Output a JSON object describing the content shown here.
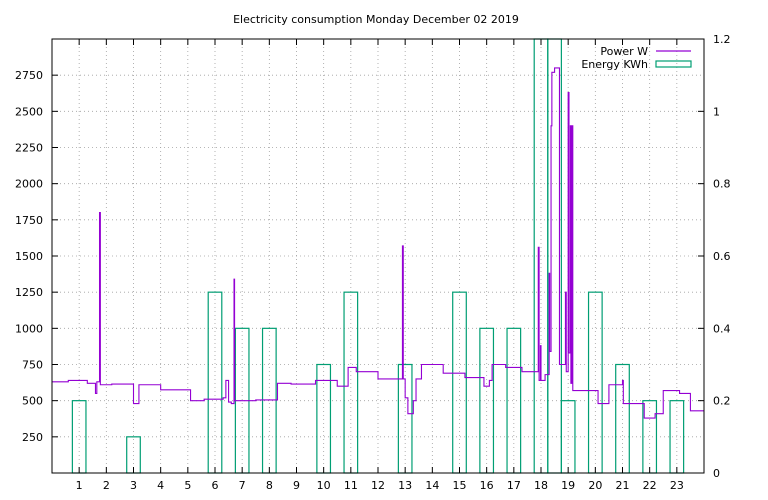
{
  "chart_data": {
    "type": "line",
    "title": "Electricity consumption Monday December 02 2019",
    "xlabel": "",
    "ylabel": "",
    "y2label": "",
    "xlim": [
      0,
      24
    ],
    "ylim": [
      0,
      3000
    ],
    "y2lim": [
      0,
      1.2
    ],
    "x_ticks": [
      1,
      2,
      3,
      4,
      5,
      6,
      7,
      8,
      9,
      10,
      11,
      12,
      13,
      14,
      15,
      16,
      17,
      18,
      19,
      20,
      21,
      22,
      23
    ],
    "y_ticks": [
      250,
      500,
      750,
      1000,
      1250,
      1500,
      1750,
      2000,
      2250,
      2500,
      2750
    ],
    "y2_ticks": [
      0,
      0.2,
      0.4,
      0.6,
      0.8,
      1,
      1.2
    ],
    "grid": true,
    "legend_position": "top-right",
    "colors": {
      "power": "#9400d3",
      "energy": "#009e73"
    },
    "series": [
      {
        "name": "Power W",
        "axis": "left",
        "style": "steps",
        "points": [
          [
            0,
            630
          ],
          [
            0.6,
            630
          ],
          [
            0.6,
            640
          ],
          [
            1.3,
            640
          ],
          [
            1.3,
            620
          ],
          [
            1.6,
            620
          ],
          [
            1.6,
            550
          ],
          [
            1.65,
            550
          ],
          [
            1.65,
            630
          ],
          [
            1.75,
            630
          ],
          [
            1.75,
            1800
          ],
          [
            1.78,
            1800
          ],
          [
            1.78,
            610
          ],
          [
            2.2,
            610
          ],
          [
            2.2,
            615
          ],
          [
            3,
            615
          ],
          [
            3,
            480
          ],
          [
            3.2,
            480
          ],
          [
            3.2,
            610
          ],
          [
            4,
            610
          ],
          [
            4,
            575
          ],
          [
            5.1,
            575
          ],
          [
            5.1,
            500
          ],
          [
            5.6,
            500
          ],
          [
            5.6,
            510
          ],
          [
            6.3,
            510
          ],
          [
            6.3,
            520
          ],
          [
            6.4,
            520
          ],
          [
            6.4,
            640
          ],
          [
            6.5,
            640
          ],
          [
            6.5,
            490
          ],
          [
            6.6,
            490
          ],
          [
            6.6,
            480
          ],
          [
            6.7,
            480
          ],
          [
            6.7,
            1340
          ],
          [
            6.72,
            1340
          ],
          [
            6.72,
            500
          ],
          [
            7.5,
            500
          ],
          [
            7.5,
            505
          ],
          [
            8.3,
            505
          ],
          [
            8.3,
            620
          ],
          [
            8.8,
            620
          ],
          [
            8.8,
            615
          ],
          [
            9.7,
            615
          ],
          [
            9.7,
            640
          ],
          [
            10.5,
            640
          ],
          [
            10.5,
            600
          ],
          [
            10.9,
            600
          ],
          [
            10.9,
            730
          ],
          [
            11.2,
            730
          ],
          [
            11.2,
            700
          ],
          [
            12,
            700
          ],
          [
            12,
            650
          ],
          [
            12.9,
            650
          ],
          [
            12.9,
            1570
          ],
          [
            12.93,
            1570
          ],
          [
            12.93,
            650
          ],
          [
            13,
            650
          ],
          [
            13,
            520
          ],
          [
            13.1,
            520
          ],
          [
            13.1,
            410
          ],
          [
            13.3,
            410
          ],
          [
            13.3,
            500
          ],
          [
            13.4,
            500
          ],
          [
            13.4,
            650
          ],
          [
            13.6,
            650
          ],
          [
            13.6,
            750
          ],
          [
            14.4,
            750
          ],
          [
            14.4,
            690
          ],
          [
            15.2,
            690
          ],
          [
            15.2,
            660
          ],
          [
            15.9,
            660
          ],
          [
            15.9,
            600
          ],
          [
            16.1,
            600
          ],
          [
            16.1,
            640
          ],
          [
            16.2,
            640
          ],
          [
            16.2,
            750
          ],
          [
            16.7,
            750
          ],
          [
            16.7,
            730
          ],
          [
            17.3,
            730
          ],
          [
            17.3,
            700
          ],
          [
            17.9,
            700
          ],
          [
            17.9,
            1560
          ],
          [
            17.93,
            1560
          ],
          [
            17.93,
            640
          ],
          [
            17.98,
            640
          ],
          [
            17.98,
            880
          ],
          [
            18.0,
            880
          ],
          [
            18.0,
            640
          ],
          [
            18.15,
            640
          ],
          [
            18.15,
            680
          ],
          [
            18.3,
            680
          ],
          [
            18.3,
            1380
          ],
          [
            18.32,
            1380
          ],
          [
            18.32,
            840
          ],
          [
            18.37,
            840
          ],
          [
            18.37,
            2400
          ],
          [
            18.4,
            2400
          ],
          [
            18.4,
            2770
          ],
          [
            18.5,
            2770
          ],
          [
            18.5,
            2800
          ],
          [
            18.68,
            2800
          ],
          [
            18.68,
            750
          ],
          [
            18.9,
            750
          ],
          [
            18.9,
            1250
          ],
          [
            18.93,
            1250
          ],
          [
            18.93,
            700
          ],
          [
            19,
            700
          ],
          [
            19,
            2630
          ],
          [
            19.03,
            2630
          ],
          [
            19.03,
            830
          ],
          [
            19.08,
            830
          ],
          [
            19.08,
            2400
          ],
          [
            19.1,
            2400
          ],
          [
            19.1,
            620
          ],
          [
            19.14,
            620
          ],
          [
            19.14,
            2400
          ],
          [
            19.17,
            2400
          ],
          [
            19.17,
            570
          ],
          [
            20.1,
            570
          ],
          [
            20.1,
            480
          ],
          [
            20.5,
            480
          ],
          [
            20.5,
            610
          ],
          [
            21,
            610
          ],
          [
            21,
            640
          ],
          [
            21.03,
            640
          ],
          [
            21.03,
            480
          ],
          [
            21.8,
            480
          ],
          [
            21.8,
            380
          ],
          [
            22.2,
            380
          ],
          [
            22.2,
            410
          ],
          [
            22.5,
            410
          ],
          [
            22.5,
            570
          ],
          [
            23.1,
            570
          ],
          [
            23.1,
            550
          ],
          [
            23.5,
            550
          ],
          [
            23.5,
            430
          ],
          [
            24,
            430
          ]
        ]
      },
      {
        "name": "Energy KWh",
        "axis": "right",
        "style": "boxes",
        "box_half_width": 0.25,
        "x": [
          1,
          3,
          6,
          7,
          8,
          10,
          11,
          13,
          15,
          16,
          17,
          18,
          18.5,
          19,
          20,
          21,
          22,
          23
        ],
        "values": [
          0.2,
          0.1,
          0.5,
          0.4,
          0.4,
          0.3,
          0.5,
          0.3,
          0.5,
          0.4,
          0.4,
          1.2,
          1.2,
          0.2,
          0.5,
          0.3,
          0.2,
          0.2
        ]
      }
    ]
  }
}
